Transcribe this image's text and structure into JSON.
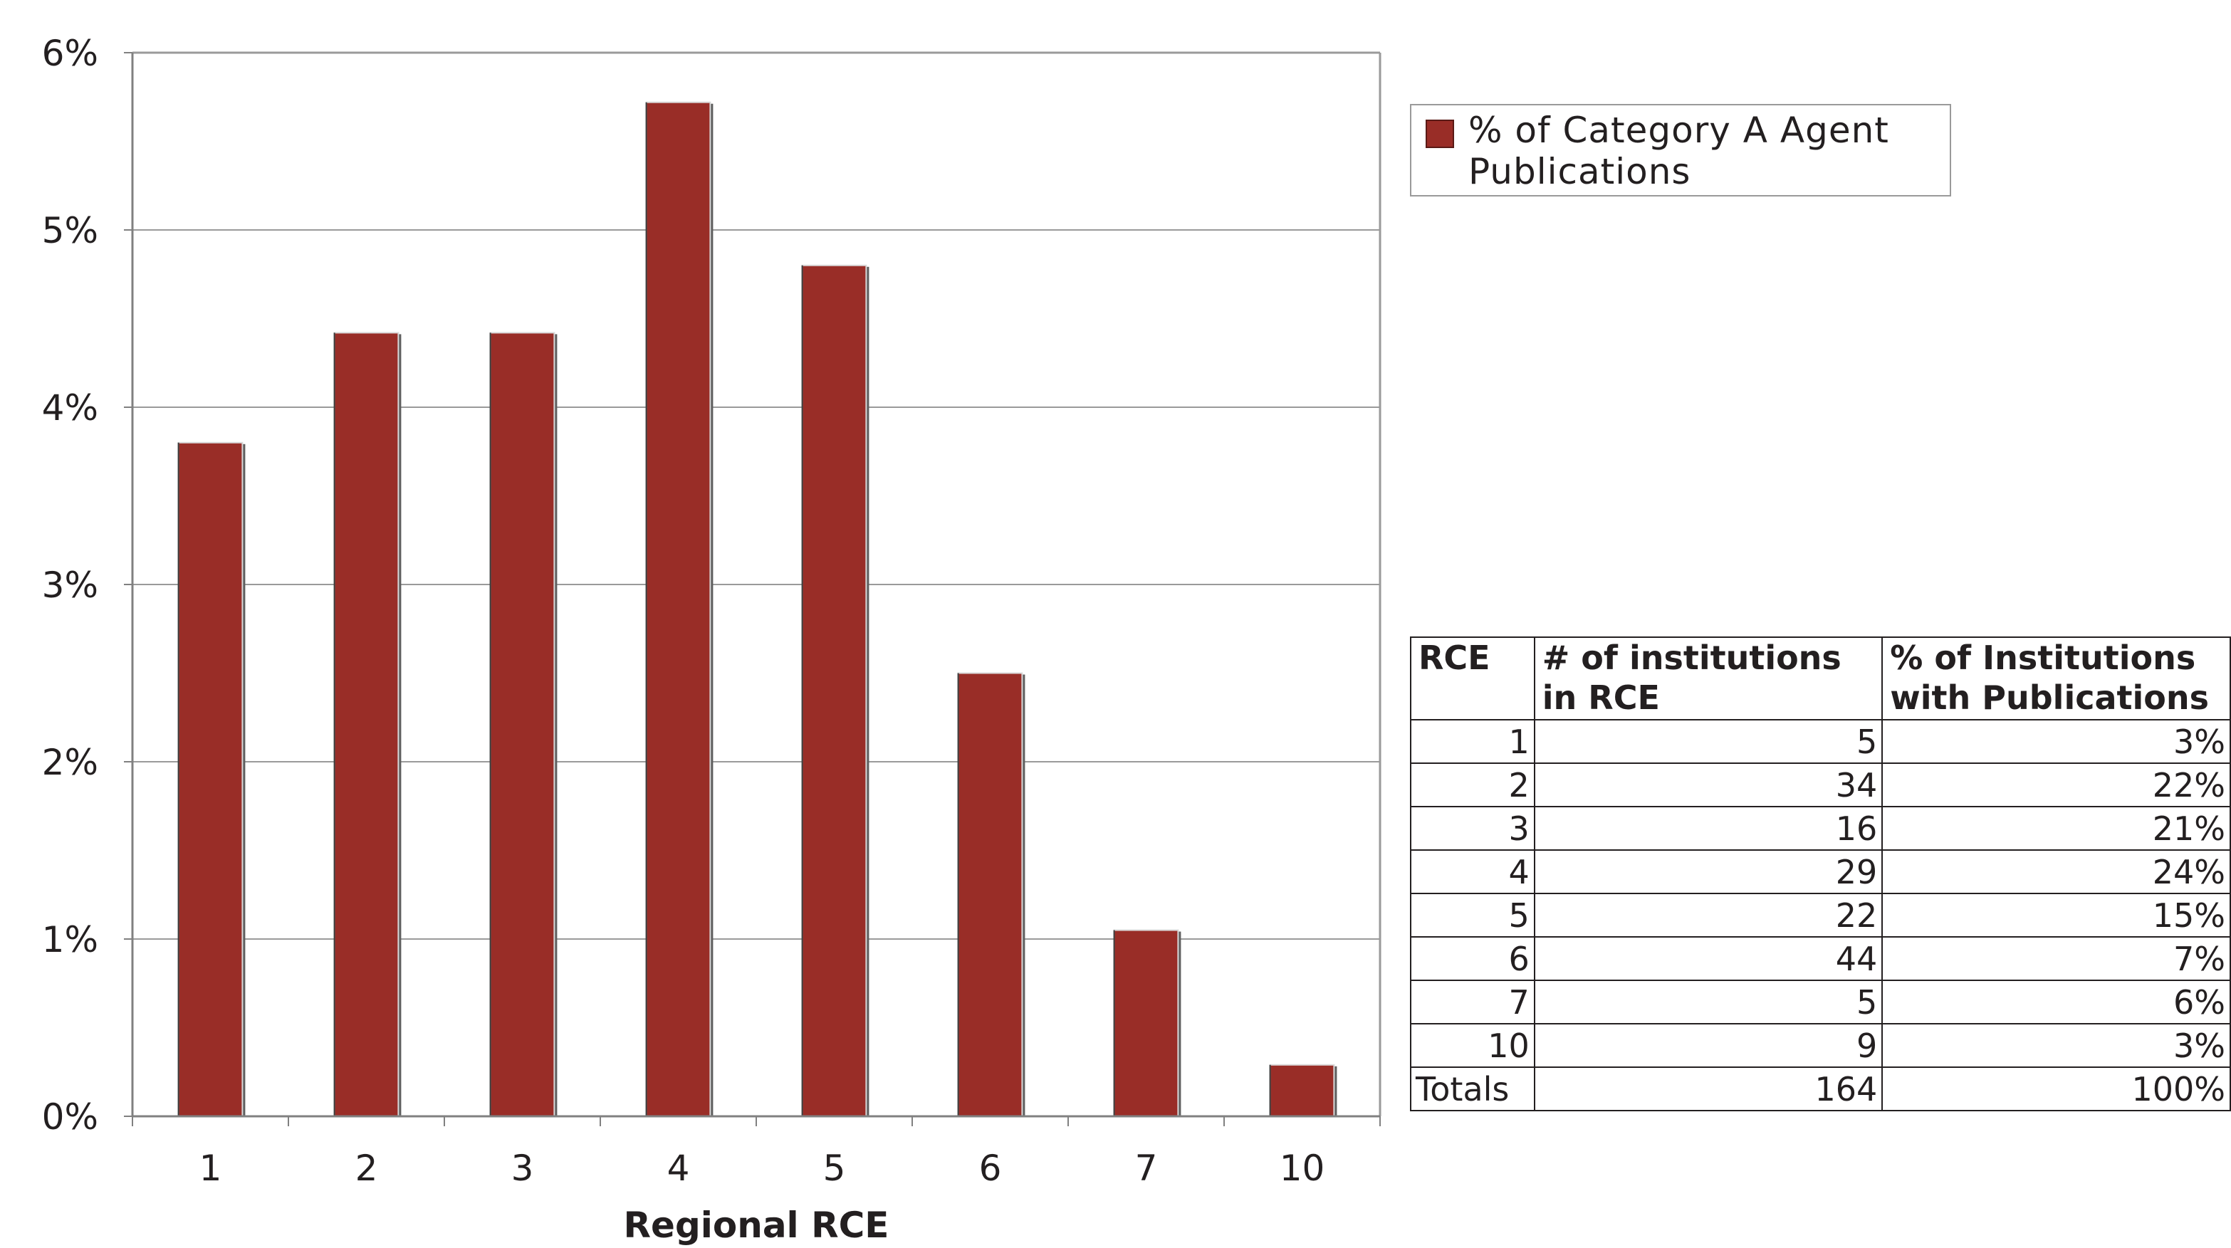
{
  "chart_data": {
    "type": "bar",
    "categories": [
      "1",
      "2",
      "3",
      "4",
      "5",
      "6",
      "7",
      "10"
    ],
    "series": [
      {
        "name": "% of Category A Agent Publications",
        "values": [
          3.8,
          4.42,
          4.42,
          5.72,
          4.8,
          2.5,
          1.05,
          0.29
        ]
      }
    ],
    "xlabel": "Regional RCE",
    "ylabel": "",
    "ylim": [
      0,
      6
    ],
    "yticks": [
      "0%",
      "1%",
      "2%",
      "3%",
      "4%",
      "5%",
      "6%"
    ],
    "grid": "horizontal",
    "legend_position": "top-right",
    "bar_color": "#992d27"
  },
  "legend": {
    "label": "% of Category A Agent Publications"
  },
  "table": {
    "headers": [
      "RCE",
      "# of institutions in RCE",
      "% of Institutions with Publications"
    ],
    "rows": [
      [
        "1",
        "5",
        "3%"
      ],
      [
        "2",
        "34",
        "22%"
      ],
      [
        "3",
        "16",
        "21%"
      ],
      [
        "4",
        "29",
        "24%"
      ],
      [
        "5",
        "22",
        "15%"
      ],
      [
        "6",
        "44",
        "7%"
      ],
      [
        "7",
        "5",
        "6%"
      ],
      [
        "10",
        "9",
        "3%"
      ]
    ],
    "totals": [
      "Totals",
      "164",
      "100%"
    ]
  }
}
